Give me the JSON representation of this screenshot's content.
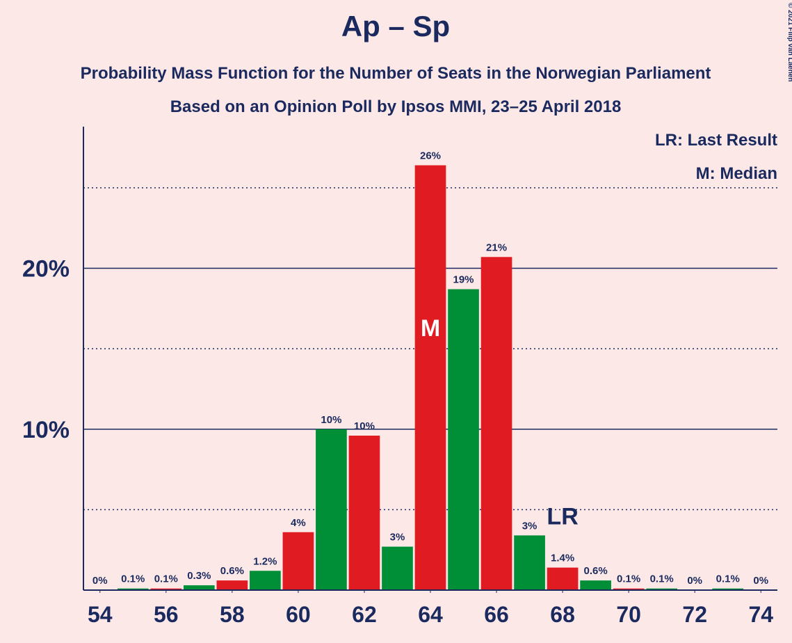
{
  "chart_data": {
    "type": "bar",
    "title": "Ap – Sp",
    "subtitle": "Probability Mass Function for the Number of Seats in the Norwegian Parliament",
    "subtitle2": "Based on an Opinion Poll by Ipsos MMI, 23–25 April 2018",
    "copyright": "© 2021 Filip van Laenen",
    "x": [
      54,
      55,
      56,
      57,
      58,
      59,
      60,
      61,
      62,
      63,
      64,
      65,
      66,
      67,
      68,
      69,
      70,
      71,
      72,
      73,
      74
    ],
    "values": [
      0,
      0.1,
      0.1,
      0.3,
      0.6,
      1.2,
      3.6,
      10.0,
      9.6,
      2.7,
      26.4,
      18.7,
      20.7,
      3.4,
      1.4,
      0.6,
      0.1,
      0.1,
      0,
      0.1,
      0
    ],
    "value_labels": [
      "0%",
      "0.1%",
      "0.1%",
      "0.3%",
      "0.6%",
      "1.2%",
      "4%",
      "10%",
      "10%",
      "3%",
      "26%",
      "19%",
      "21%",
      "3%",
      "1.4%",
      "0.6%",
      "0.1%",
      "0.1%",
      "0%",
      "0.1%",
      "0%"
    ],
    "bar_colors": [
      "#e11b22",
      "#008f36",
      "#e11b22",
      "#008f36",
      "#e11b22",
      "#008f36",
      "#e11b22",
      "#008f36",
      "#e11b22",
      "#008f36",
      "#e11b22",
      "#008f36",
      "#e11b22",
      "#008f36",
      "#e11b22",
      "#008f36",
      "#e11b22",
      "#008f36",
      "#e11b22",
      "#008f36",
      "#e11b22"
    ],
    "xlim": [
      53.5,
      74.5
    ],
    "xticks": [
      54,
      56,
      58,
      60,
      62,
      64,
      66,
      68,
      70,
      72,
      74
    ],
    "ylim": [
      0,
      28.8
    ],
    "yticks": [
      {
        "value": 10,
        "label": "10%"
      },
      {
        "value": 20,
        "label": "20%"
      }
    ],
    "minor_yticks": [
      5,
      15,
      25
    ],
    "grid": true,
    "annotations": [
      {
        "text": "M",
        "x": 64
      },
      {
        "text": "LR",
        "x": 68
      }
    ],
    "legend": [
      "LR: Last Result",
      "M: Median"
    ]
  }
}
